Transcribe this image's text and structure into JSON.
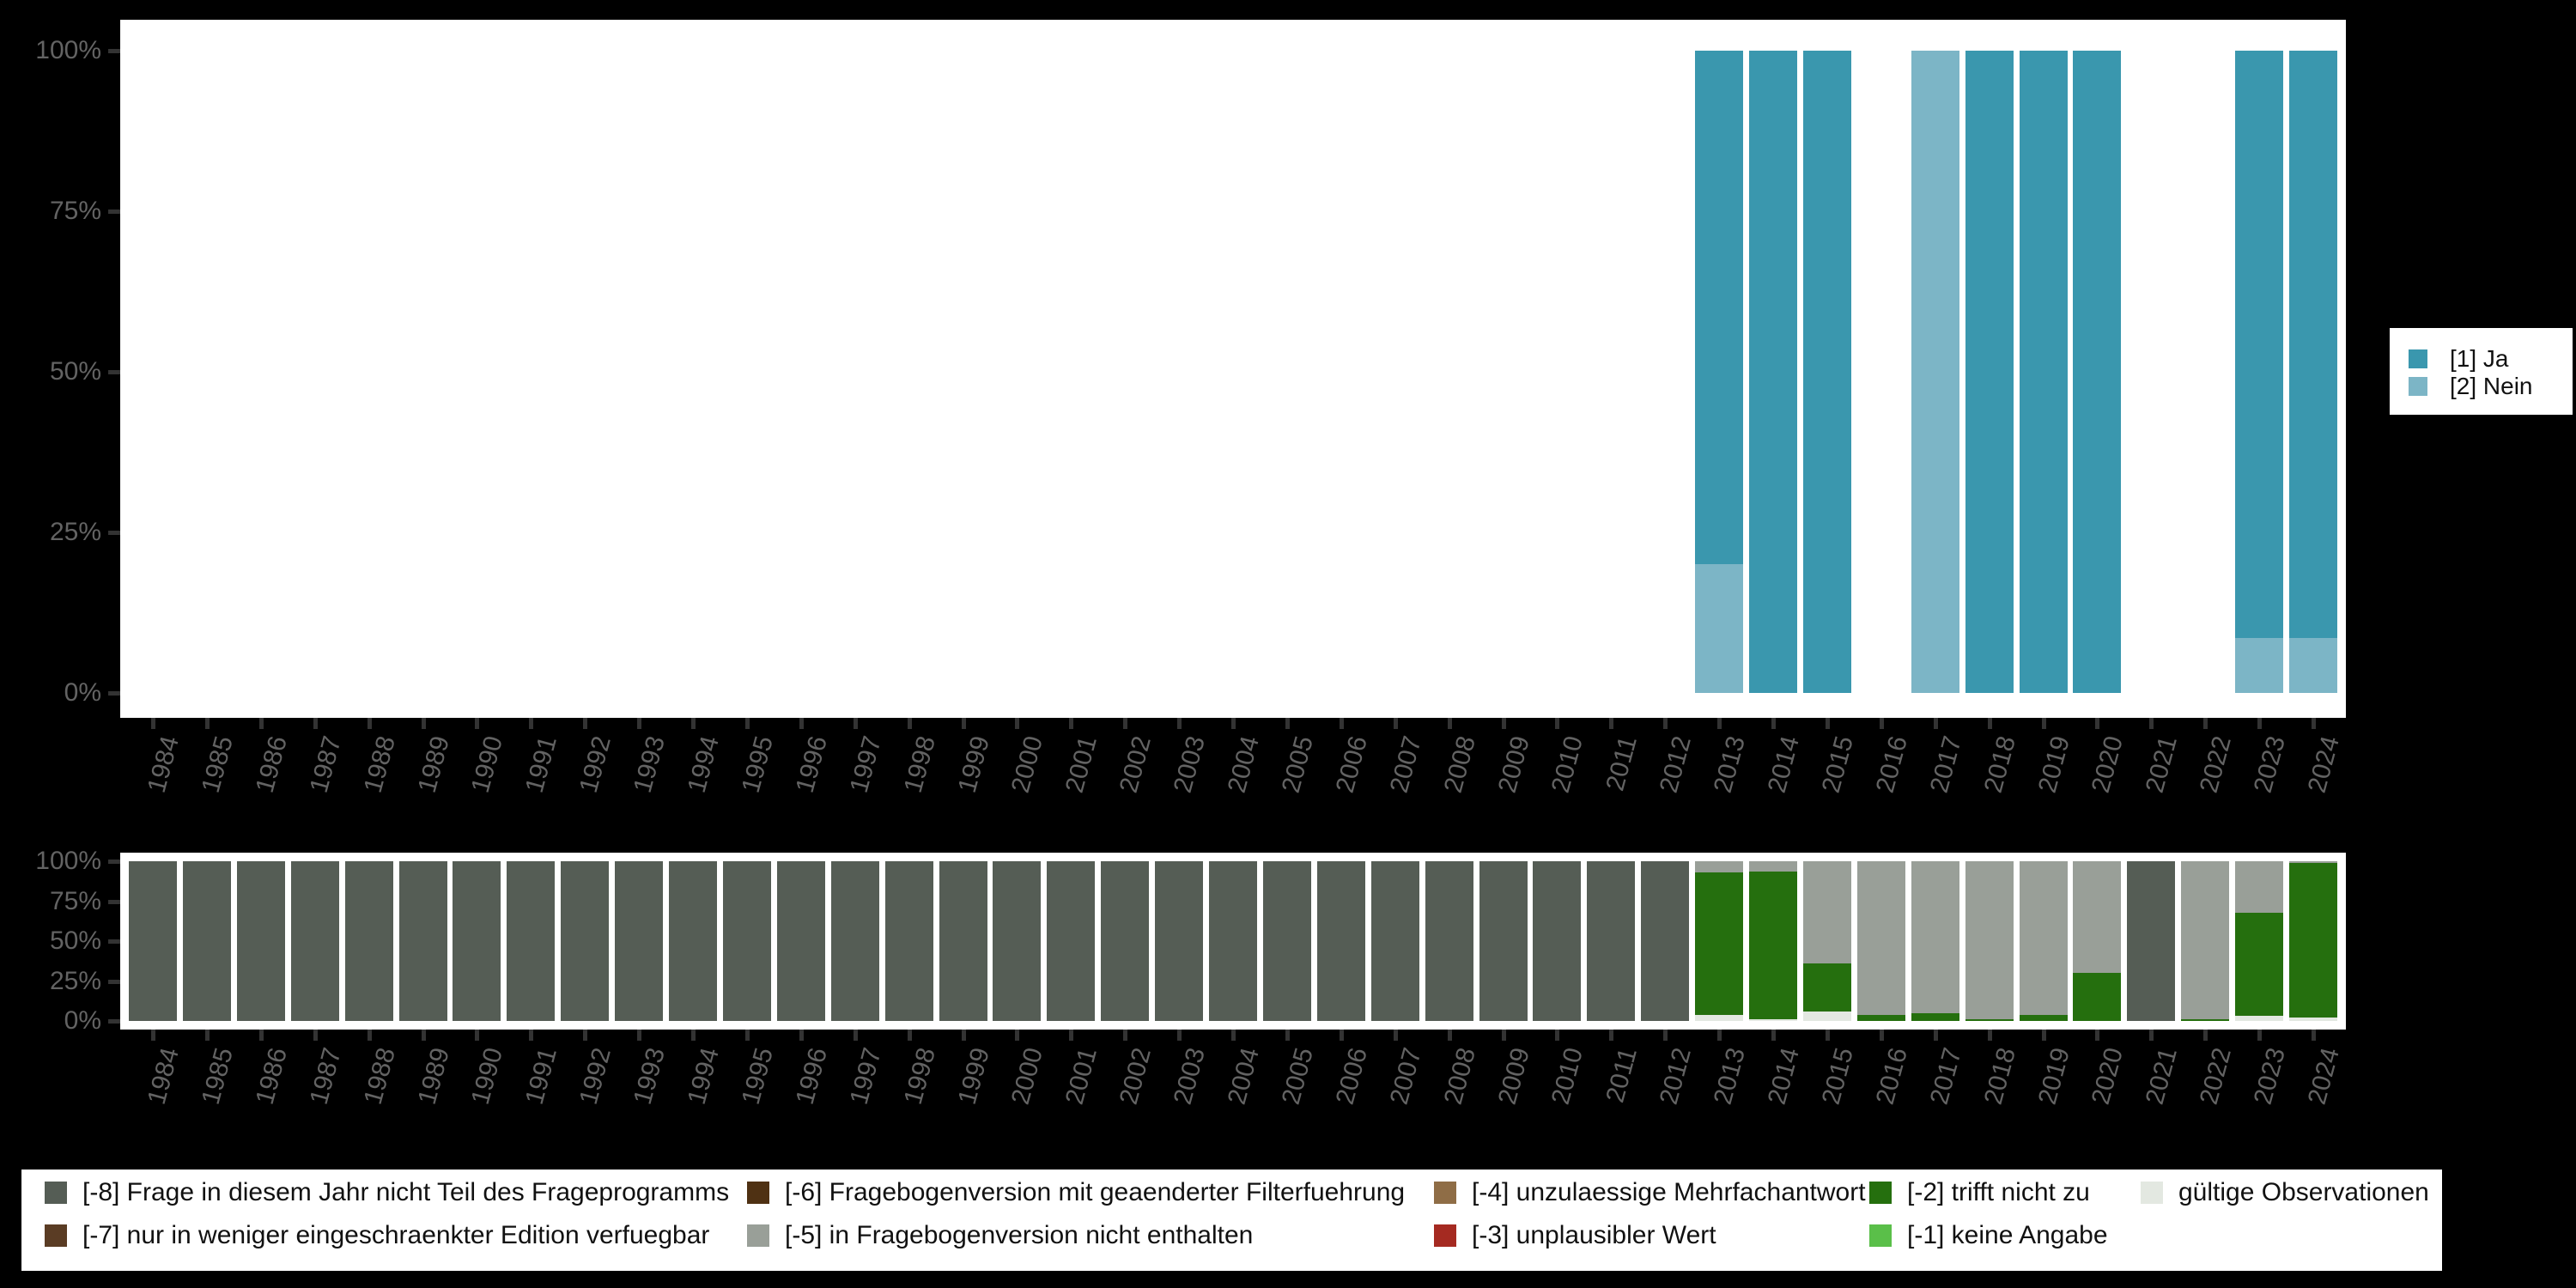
{
  "colors": {
    "background": "#000000",
    "panel": "#ffffff",
    "axis_text": "#636363",
    "tick": "#333333",
    "legend_text": "#111111",
    "ja": "#3A97AE",
    "nein": "#7CB5C6",
    "minus8": "#555D55",
    "minus7": "#5A3C24",
    "minus6": "#4F3113",
    "minus5": "#999F98",
    "minus4": "#8F6D46",
    "minus3": "#A52A21",
    "minus2": "#256F0E",
    "minus1": "#5ABF49",
    "valid": "#E3E8E1"
  },
  "top_legend": {
    "items": [
      {
        "label": "[1] Ja",
        "color": "#3A97AE"
      },
      {
        "label": "[2] Nein",
        "color": "#7CB5C6"
      }
    ]
  },
  "bottom_legend": {
    "items": [
      {
        "label": "[-8] Frage in diesem Jahr nicht Teil des Frageprogramms",
        "color": "#555D55",
        "col": 0,
        "row": 0
      },
      {
        "label": "[-7] nur in weniger eingeschraenkter Edition verfuegbar",
        "color": "#5A3C24",
        "col": 0,
        "row": 1
      },
      {
        "label": "[-6] Fragebogenversion mit geaenderter Filterfuehrung",
        "color": "#4F3113",
        "col": 1,
        "row": 0
      },
      {
        "label": "[-5] in Fragebogenversion nicht enthalten",
        "color": "#999F98",
        "col": 1,
        "row": 1
      },
      {
        "label": "[-4] unzulaessige Mehrfachantwort",
        "color": "#8F6D46",
        "col": 2,
        "row": 0
      },
      {
        "label": "[-3] unplausibler Wert",
        "color": "#A52A21",
        "col": 2,
        "row": 1
      },
      {
        "label": "[-2] trifft nicht zu",
        "color": "#256F0E",
        "col": 3,
        "row": 0
      },
      {
        "label": "[-1] keine Angabe",
        "color": "#5ABF49",
        "col": 3,
        "row": 1
      },
      {
        "label": "gültige Observationen",
        "color": "#E3E8E1",
        "col": 4,
        "row": 0
      }
    ]
  },
  "chart_data": [
    {
      "type": "bar",
      "stacked": true,
      "unit": "percent",
      "title": "",
      "xlabel": "",
      "ylabel": "",
      "ylim": [
        0,
        100
      ],
      "grid": false,
      "legend_position": "right",
      "yticks": [
        "100%",
        "75%",
        "50%",
        "25%",
        "0%"
      ],
      "categories": [
        "1984",
        "1985",
        "1986",
        "1987",
        "1988",
        "1989",
        "1990",
        "1991",
        "1992",
        "1993",
        "1994",
        "1995",
        "1996",
        "1997",
        "1998",
        "1999",
        "2000",
        "2001",
        "2002",
        "2003",
        "2004",
        "2005",
        "2006",
        "2007",
        "2008",
        "2009",
        "2010",
        "2011",
        "2012",
        "2013",
        "2014",
        "2015",
        "2016",
        "2017",
        "2018",
        "2019",
        "2020",
        "2021",
        "2022",
        "2023",
        "2024"
      ],
      "series": [
        {
          "name": "[1] Ja",
          "color": "#3A97AE",
          "values": [
            null,
            null,
            null,
            null,
            null,
            null,
            null,
            null,
            null,
            null,
            null,
            null,
            null,
            null,
            null,
            null,
            null,
            null,
            null,
            null,
            null,
            null,
            null,
            null,
            null,
            null,
            null,
            null,
            null,
            80,
            100,
            100,
            null,
            0,
            100,
            100,
            100,
            null,
            null,
            91.5,
            91.5
          ]
        },
        {
          "name": "[2] Nein",
          "color": "#7CB5C6",
          "values": [
            null,
            null,
            null,
            null,
            null,
            null,
            null,
            null,
            null,
            null,
            null,
            null,
            null,
            null,
            null,
            null,
            null,
            null,
            null,
            null,
            null,
            null,
            null,
            null,
            null,
            null,
            null,
            null,
            null,
            20,
            0,
            0,
            null,
            100,
            0,
            0,
            0,
            null,
            null,
            8.5,
            8.5
          ]
        }
      ]
    },
    {
      "type": "bar",
      "stacked": true,
      "unit": "percent",
      "title": "",
      "xlabel": "",
      "ylabel": "",
      "ylim": [
        0,
        100
      ],
      "grid": false,
      "legend_position": "bottom",
      "yticks": [
        "100%",
        "75%",
        "50%",
        "25%",
        "0%"
      ],
      "categories": [
        "1984",
        "1985",
        "1986",
        "1987",
        "1988",
        "1989",
        "1990",
        "1991",
        "1992",
        "1993",
        "1994",
        "1995",
        "1996",
        "1997",
        "1998",
        "1999",
        "2000",
        "2001",
        "2002",
        "2003",
        "2004",
        "2005",
        "2006",
        "2007",
        "2008",
        "2009",
        "2010",
        "2011",
        "2012",
        "2013",
        "2014",
        "2015",
        "2016",
        "2017",
        "2018",
        "2019",
        "2020",
        "2021",
        "2022",
        "2023",
        "2024"
      ],
      "series": [
        {
          "name": "[-8] Frage in diesem Jahr nicht Teil des Frageprogramms",
          "color": "#555D55",
          "values": [
            100,
            100,
            100,
            100,
            100,
            100,
            100,
            100,
            100,
            100,
            100,
            100,
            100,
            100,
            100,
            100,
            100,
            100,
            100,
            100,
            100,
            100,
            100,
            100,
            100,
            100,
            100,
            100,
            100,
            0,
            0,
            0,
            0,
            0,
            0,
            0,
            0,
            100,
            0,
            0,
            0
          ]
        },
        {
          "name": "[-5] in Fragebogenversion nicht enthalten",
          "color": "#999F98",
          "values": [
            0,
            0,
            0,
            0,
            0,
            0,
            0,
            0,
            0,
            0,
            0,
            0,
            0,
            0,
            0,
            0,
            0,
            0,
            0,
            0,
            0,
            0,
            0,
            0,
            0,
            0,
            0,
            0,
            0,
            7,
            6.5,
            64,
            96.5,
            95,
            99,
            96,
            70,
            0,
            99,
            32.5,
            1
          ]
        },
        {
          "name": "[-2] trifft nicht zu",
          "color": "#256F0E",
          "values": [
            0,
            0,
            0,
            0,
            0,
            0,
            0,
            0,
            0,
            0,
            0,
            0,
            0,
            0,
            0,
            0,
            0,
            0,
            0,
            0,
            0,
            0,
            0,
            0,
            0,
            0,
            0,
            0,
            0,
            89,
            92.5,
            30,
            3.5,
            5,
            1,
            4,
            30,
            0,
            1,
            64.5,
            97
          ]
        },
        {
          "name": "gültige Observationen",
          "color": "#E3E8E1",
          "values": [
            0,
            0,
            0,
            0,
            0,
            0,
            0,
            0,
            0,
            0,
            0,
            0,
            0,
            0,
            0,
            0,
            0,
            0,
            0,
            0,
            0,
            0,
            0,
            0,
            0,
            0,
            0,
            0,
            0,
            4,
            1,
            6,
            0,
            0,
            0,
            0,
            0,
            0,
            0,
            3,
            2
          ]
        }
      ]
    }
  ]
}
